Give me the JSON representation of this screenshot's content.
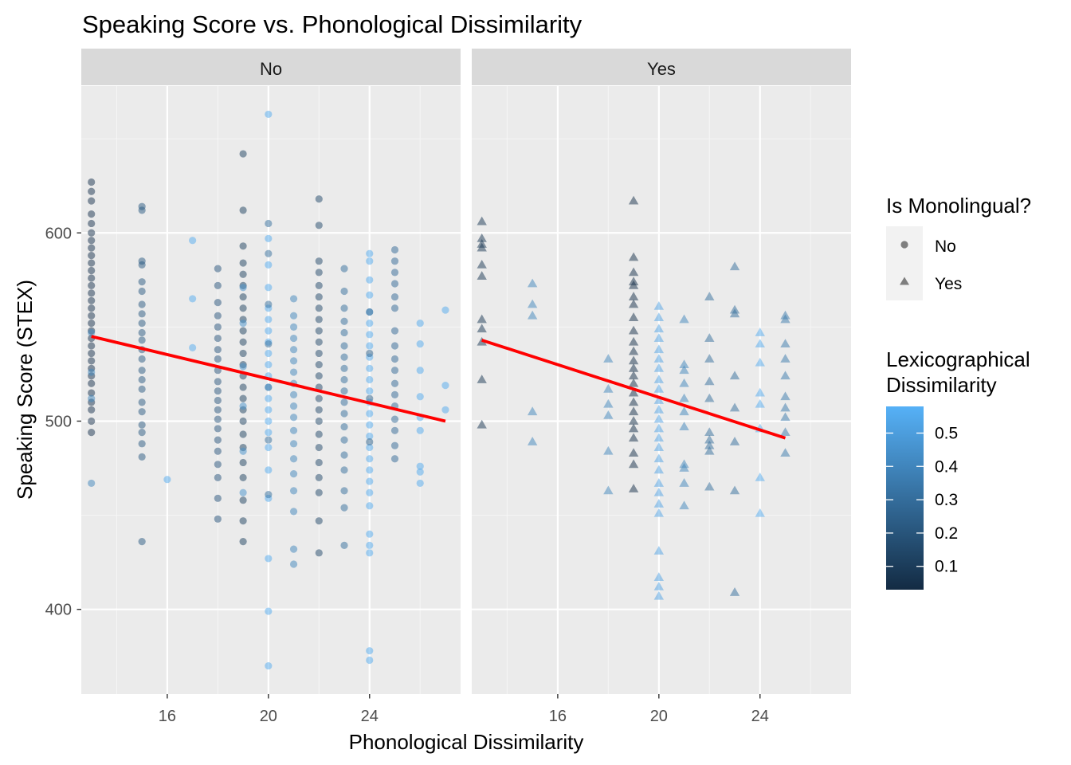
{
  "chart_data": {
    "type": "scatter",
    "title": "Speaking Score vs. Phonological Dissimilarity",
    "xlabel": "Phonological Dissimilarity",
    "ylabel": "Speaking Score (STEX)",
    "xlim": [
      12.6,
      27.6
    ],
    "ylim": [
      355,
      678
    ],
    "x_ticks": [
      16,
      20,
      24
    ],
    "y_ticks": [
      400,
      500,
      600
    ],
    "grid": true,
    "legend_placement": "right",
    "colors": {
      "panel_bg": "#EBEBEB",
      "strip_bg": "#D9D9D9",
      "grid_major": "#FFFFFF",
      "grid_minor": "#F5F5F5",
      "trend_line": "#FF0000",
      "point_low": "#132B43",
      "point_high": "#56B1F7",
      "shape_key": "#7F7F7F"
    },
    "color_scale": {
      "title": "Lexicographical Dissimilarity",
      "title_lines": [
        "Lexicographical",
        "Dissimilarity"
      ],
      "min": 0.03,
      "max": 0.58,
      "ticks": [
        0.1,
        0.2,
        0.3,
        0.4,
        0.5
      ]
    },
    "shape_legend": {
      "title": "Is Monolingual?",
      "entries": [
        {
          "label": "No",
          "shape": "circle"
        },
        {
          "label": "Yes",
          "shape": "triangle"
        }
      ]
    },
    "facets": [
      {
        "label": "No",
        "shape": "circle",
        "trend": {
          "x": [
            13,
            27
          ],
          "y": [
            545,
            500
          ]
        },
        "groups": [
          {
            "x": 13,
            "lex": 0.06,
            "y": [
              494,
              500,
              506,
              510,
              515,
              520,
              524,
              528,
              532,
              536,
              540,
              544,
              548,
              552,
              556,
              560,
              564,
              568,
              572,
              576,
              580,
              584,
              588,
              592,
              596,
              600,
              605,
              610,
              617,
              622,
              627
            ]
          },
          {
            "x": 13,
            "lex": 0.4,
            "y": [
              467,
              512,
              526,
              547
            ]
          },
          {
            "x": 15,
            "lex": 0.22,
            "y": [
              436,
              481,
              488,
              494,
              498,
              505,
              510,
              517,
              522,
              527,
              533,
              538,
              543,
              547,
              552,
              557,
              562,
              569,
              574,
              583,
              585,
              612,
              614
            ]
          },
          {
            "x": 16,
            "lex": 0.55,
            "y": [
              469
            ]
          },
          {
            "x": 17,
            "lex": 0.56,
            "y": [
              539,
              565,
              596
            ]
          },
          {
            "x": 18,
            "lex": 0.2,
            "y": [
              448,
              459,
              470,
              477,
              484,
              490,
              496,
              501,
              506,
              511,
              516,
              521,
              527,
              533,
              538,
              544,
              550,
              556,
              563,
              572,
              581
            ]
          },
          {
            "x": 19,
            "lex": 0.12,
            "y": [
              436,
              447,
              458,
              470,
              478,
              486,
              493,
              500,
              506,
              512,
              518,
              524,
              530,
              536,
              542,
              548,
              554,
              560,
              566,
              572,
              578,
              584,
              593,
              612,
              642
            ]
          },
          {
            "x": 19,
            "lex": 0.45,
            "y": [
              462,
              484,
              508,
              529,
              552,
              571
            ]
          },
          {
            "x": 20,
            "lex": 0.55,
            "y": [
              370,
              399,
              427,
              459,
              474,
              486,
              494,
              500,
              506,
              512,
              518,
              524,
              530,
              536,
              542,
              548,
              554,
              560,
              571,
              583,
              597,
              663
            ]
          },
          {
            "x": 20,
            "lex": 0.3,
            "y": [
              461,
              490,
              518,
              541,
              562,
              589,
              605
            ]
          },
          {
            "x": 21,
            "lex": 0.4,
            "y": [
              424,
              432,
              452,
              463,
              472,
              480,
              488,
              495,
              502,
              508,
              514,
              520,
              526,
              532,
              538,
              544,
              550,
              556,
              565
            ]
          },
          {
            "x": 22,
            "lex": 0.15,
            "y": [
              430,
              447,
              462,
              470,
              478,
              486,
              493,
              500,
              506,
              512,
              518,
              524,
              530,
              536,
              542,
              548,
              554,
              560,
              566,
              572,
              579,
              585,
              604,
              618
            ]
          },
          {
            "x": 23,
            "lex": 0.3,
            "y": [
              434,
              454,
              463,
              474,
              482,
              490,
              497,
              504,
              510,
              516,
              522,
              528,
              534,
              540,
              547,
              553,
              560,
              569,
              581
            ]
          },
          {
            "x": 24,
            "lex": 0.55,
            "y": [
              373,
              378,
              430,
              434,
              440,
              455,
              462,
              468,
              474,
              480,
              486,
              492,
              498,
              504,
              510,
              516,
              522,
              528,
              534,
              540,
              546,
              552,
              558,
              567,
              575,
              585,
              589
            ]
          },
          {
            "x": 24,
            "lex": 0.25,
            "y": [
              489,
              512,
              536,
              558
            ]
          },
          {
            "x": 25,
            "lex": 0.28,
            "y": [
              480,
              487,
              495,
              501,
              508,
              514,
              520,
              527,
              533,
              540,
              548,
              560,
              566,
              573,
              579,
              585,
              591
            ]
          },
          {
            "x": 26,
            "lex": 0.55,
            "y": [
              467,
              473,
              476,
              495,
              502,
              513,
              527,
              541,
              552
            ]
          },
          {
            "x": 27,
            "lex": 0.55,
            "y": [
              506,
              519,
              559
            ]
          }
        ]
      },
      {
        "label": "Yes",
        "shape": "triangle",
        "trend": {
          "x": [
            13,
            25
          ],
          "y": [
            543,
            491
          ]
        },
        "groups": [
          {
            "x": 13,
            "lex": 0.08,
            "y": [
              498,
              522,
              542,
              549,
              554,
              577,
              583,
              592,
              594,
              597,
              606
            ]
          },
          {
            "x": 15,
            "lex": 0.4,
            "y": [
              489,
              505,
              556,
              562,
              573
            ]
          },
          {
            "x": 18,
            "lex": 0.4,
            "y": [
              463,
              484,
              503,
              509,
              517,
              533
            ]
          },
          {
            "x": 19,
            "lex": 0.05,
            "y": [
              464,
              477,
              483,
              491,
              496,
              500,
              505,
              510,
              515,
              520,
              524,
              528,
              532,
              537,
              542,
              548,
              555,
              562,
              566,
              572,
              574,
              579,
              587,
              617
            ]
          },
          {
            "x": 20,
            "lex": 0.52,
            "y": [
              407,
              412,
              417,
              431,
              451,
              456,
              462,
              467,
              474,
              480,
              486,
              491,
              496,
              501,
              506,
              511,
              517,
              522,
              528,
              533,
              538,
              544,
              549,
              555,
              561
            ]
          },
          {
            "x": 21,
            "lex": 0.4,
            "y": [
              455,
              467,
              475,
              477,
              497,
              505,
              512,
              520,
              527,
              530,
              554
            ]
          },
          {
            "x": 22,
            "lex": 0.3,
            "y": [
              465,
              484,
              487,
              490,
              494,
              512,
              521,
              533,
              544,
              566
            ]
          },
          {
            "x": 23,
            "lex": 0.3,
            "y": [
              409,
              463,
              489,
              507,
              524,
              557,
              559,
              582
            ]
          },
          {
            "x": 24,
            "lex": 0.55,
            "y": [
              451,
              470,
              496,
              509,
              515,
              531,
              541,
              547
            ]
          },
          {
            "x": 25,
            "lex": 0.35,
            "y": [
              483,
              494,
              502,
              507,
              513,
              524,
              533,
              541,
              554,
              556
            ]
          }
        ]
      }
    ]
  }
}
